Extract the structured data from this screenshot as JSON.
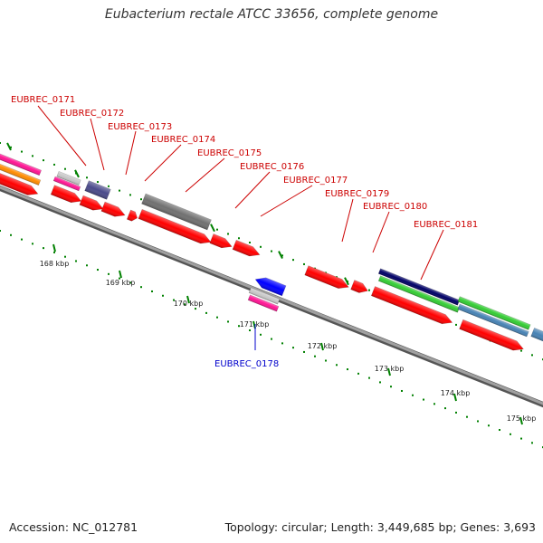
{
  "title": "Eubacterium rectale ATCC 33656, complete genome",
  "footer": {
    "accession": "Accession: NC_012781",
    "topology": "Topology: circular; Length: 3,449,685 bp; Genes: 3,693"
  },
  "scale_labels": [
    "168 kbp",
    "169 kbp",
    "170 kbp",
    "171 kbp",
    "172 kbp",
    "173 kbp",
    "174 kbp",
    "175 kbp"
  ],
  "gene_labels": [
    {
      "text": "EUBREC_0171",
      "color": "#cc0000"
    },
    {
      "text": "EUBREC_0172",
      "color": "#cc0000"
    },
    {
      "text": "EUBREC_0173",
      "color": "#cc0000"
    },
    {
      "text": "EUBREC_0174",
      "color": "#cc0000"
    },
    {
      "text": "EUBREC_0175",
      "color": "#cc0000"
    },
    {
      "text": "EUBREC_0176",
      "color": "#cc0000"
    },
    {
      "text": "EUBREC_0177",
      "color": "#cc0000"
    },
    {
      "text": "EUBREC_0179",
      "color": "#cc0000"
    },
    {
      "text": "EUBREC_0180",
      "color": "#cc0000"
    },
    {
      "text": "EUBREC_0181",
      "color": "#cc0000"
    },
    {
      "text": "EUBREC_0178",
      "color": "#0000cc"
    }
  ],
  "colors": {
    "cds": "#ff0000",
    "cds_reverse": "#0000ff",
    "backbone": "#808080",
    "tick": "#008000",
    "rna": "#707070",
    "magenta": "#ff1493",
    "orange": "#ff8c00",
    "grey_light": "#c8c8c8",
    "slate": "#4a4a8a",
    "navy": "#000066",
    "green": "#33cc33",
    "steelblue": "#4682b4",
    "skyblue": "#87ceeb"
  }
}
